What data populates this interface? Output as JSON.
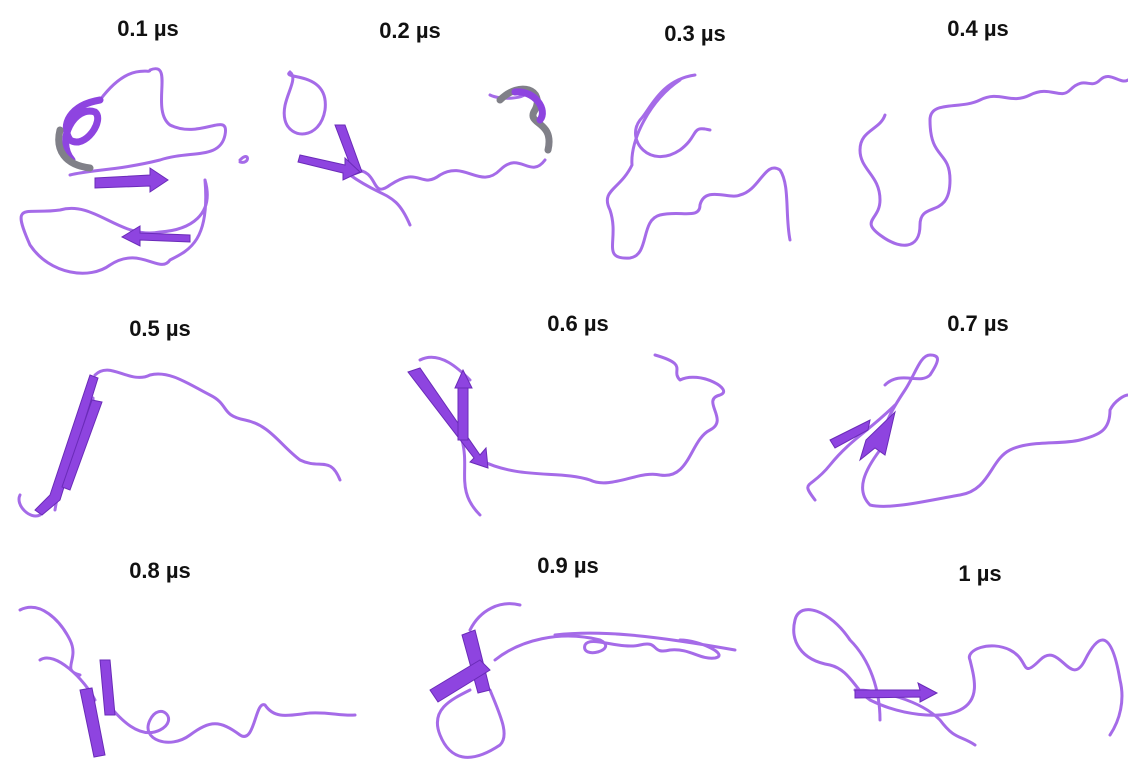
{
  "panels": [
    {
      "label": "0.1 µs"
    },
    {
      "label": "0.2 µs"
    },
    {
      "label": "0.3 µs"
    },
    {
      "label": "0.4 µs"
    },
    {
      "label": "0.5 µs"
    },
    {
      "label": "0.6 µs"
    },
    {
      "label": "0.7 µs"
    },
    {
      "label": "0.8 µs"
    },
    {
      "label": "0.9 µs"
    },
    {
      "label": "1 µs"
    }
  ]
}
